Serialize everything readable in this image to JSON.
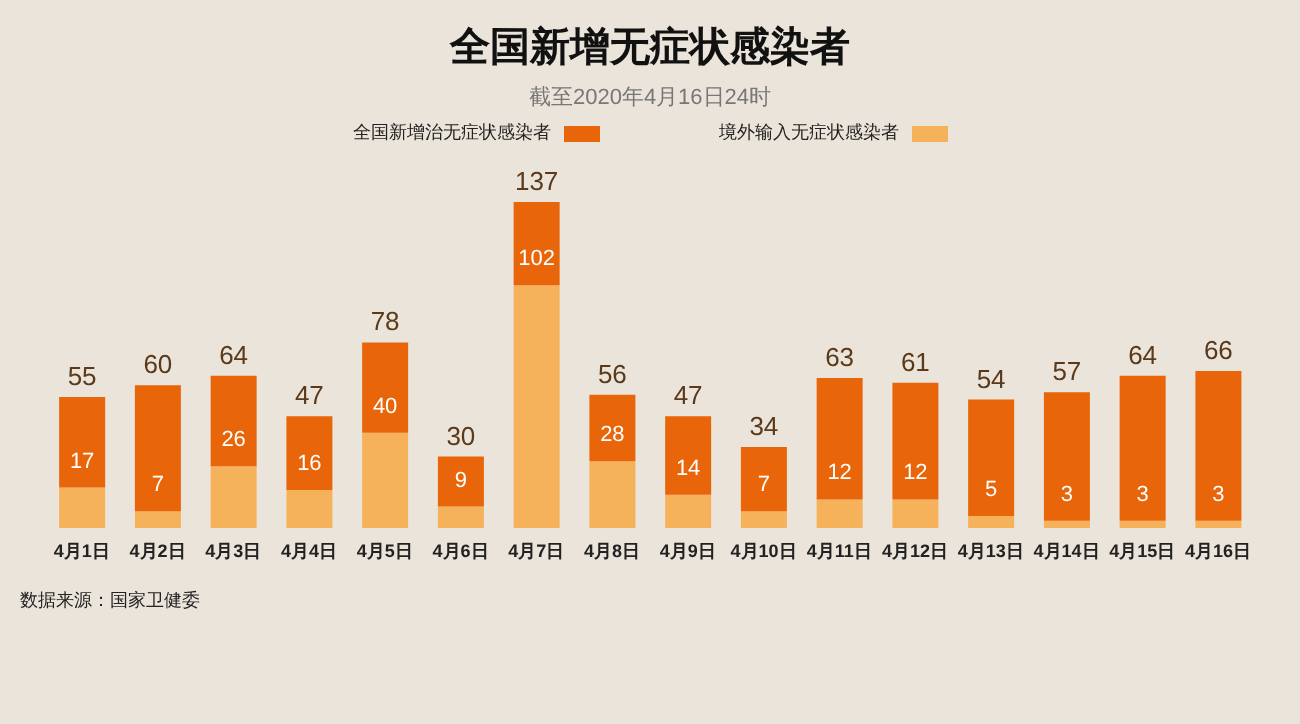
{
  "chart_data": {
    "type": "bar",
    "title": "全国新增无症状感染者",
    "subtitle": "截至2020年4月16日24时",
    "categories": [
      "4月1日",
      "4月2日",
      "4月3日",
      "4月4日",
      "4月5日",
      "4月6日",
      "4月7日",
      "4月8日",
      "4月9日",
      "4月10日",
      "4月11日",
      "4月12日",
      "4月13日",
      "4月14日",
      "4月15日",
      "4月16日"
    ],
    "stacked": true,
    "series": [
      {
        "name": "境外输入无症状感染者",
        "color": "#f6b25a",
        "values": [
          17,
          7,
          26,
          16,
          40,
          9,
          102,
          28,
          14,
          7,
          12,
          12,
          5,
          3,
          3,
          3
        ],
        "value_labels": [
          "17",
          "7",
          "26",
          "16",
          "40",
          "9",
          "102",
          "28",
          "14",
          "7",
          "12",
          "12",
          "5",
          "3",
          "3",
          "3"
        ]
      },
      {
        "name": "全国新增治无症状感染者",
        "color": "#e8650a",
        "values": [
          38,
          53,
          38,
          31,
          38,
          21,
          35,
          28,
          33,
          27,
          51,
          49,
          49,
          54,
          61,
          63
        ]
      }
    ],
    "totals": [
      "55",
      "60",
      "64",
      "47",
      "78",
      "30",
      "137",
      "56",
      "47",
      "34",
      "63",
      "61",
      "54",
      "57",
      "64",
      "66"
    ],
    "legend": "top",
    "tick_labels": "x",
    "annotations": [
      "数据来源：国家卫健委"
    ]
  }
}
